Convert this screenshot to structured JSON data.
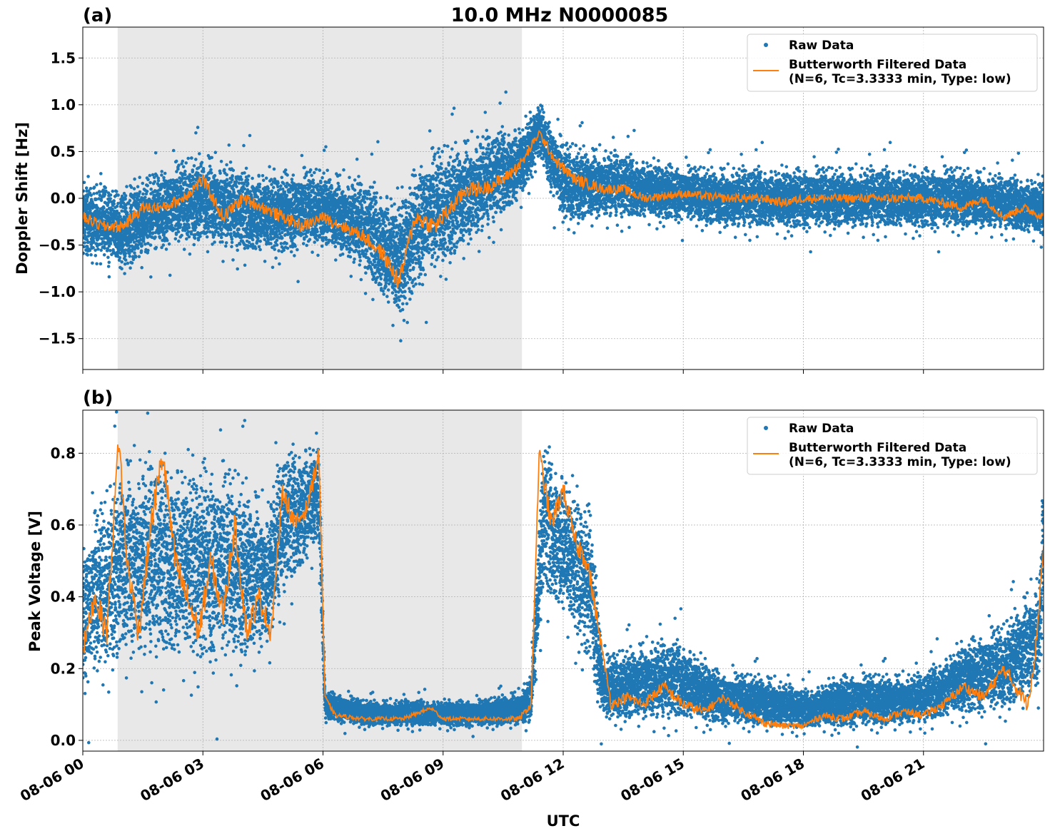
{
  "figure": {
    "title": "10.0 MHz N0000085",
    "xlabel": "UTC",
    "colors": {
      "raw": "#1f77b4",
      "filtered": "#ff7f0e",
      "shade": "#e8e8e8",
      "grid": "#b0b0b0"
    }
  },
  "chart_data": [
    {
      "type": "scatter",
      "panel_label": "(a)",
      "ylabel": "Doppler Shift [Hz]",
      "xlim": [
        0,
        24
      ],
      "ylim": [
        -1.83,
        1.83
      ],
      "x_ticks": [
        0,
        3,
        6,
        9,
        12,
        15,
        18,
        21
      ],
      "y_ticks": [
        -1.5,
        -1.0,
        -0.5,
        0.0,
        0.5,
        1.0,
        1.5
      ],
      "y_tick_labels": [
        "−1.5",
        "−1.0",
        "−0.5",
        "0.0",
        "0.5",
        "1.0",
        "1.5"
      ],
      "grid": true,
      "shaded_interval_hours": [
        0.87,
        10.97
      ],
      "legend": {
        "placement": "top-right",
        "entries": [
          "Raw Data",
          "Butterworth Filtered Data",
          "(N=6, Tc=3.3333 min, Type: low)"
        ]
      },
      "series": [
        {
          "name": "Raw Data",
          "kind": "scatter-band",
          "x_hours": [
            0,
            1,
            2,
            3,
            4,
            5,
            6,
            7,
            7.9,
            8.5,
            9,
            10,
            11,
            11.4,
            12,
            13,
            14,
            15,
            16,
            17,
            18,
            19,
            20,
            21,
            22,
            23,
            24
          ],
          "lower": [
            -0.7,
            -0.9,
            -0.6,
            -0.6,
            -0.7,
            -0.7,
            -0.6,
            -0.9,
            -1.5,
            -1.0,
            -0.9,
            -0.5,
            -0.1,
            0.4,
            -0.4,
            -0.3,
            -0.3,
            -0.3,
            -0.4,
            -0.4,
            -0.4,
            -0.4,
            -0.4,
            -0.4,
            -0.4,
            -0.4,
            -0.5
          ],
          "upper": [
            0.3,
            0.2,
            0.4,
            0.6,
            0.4,
            0.4,
            0.4,
            0.3,
            0.2,
            0.6,
            0.7,
            0.8,
            0.9,
            1.1,
            0.7,
            0.6,
            0.5,
            0.4,
            0.4,
            0.4,
            0.4,
            0.4,
            0.4,
            0.4,
            0.4,
            0.3,
            0.3
          ]
        },
        {
          "name": "Butterworth Filtered Data",
          "kind": "line",
          "x_hours": [
            0,
            0.5,
            1,
            1.5,
            2,
            2.5,
            3,
            3.5,
            4,
            4.5,
            5,
            5.5,
            6,
            6.5,
            7,
            7.5,
            7.9,
            8.3,
            8.8,
            9.2,
            9.6,
            10,
            10.5,
            11,
            11.4,
            11.8,
            12.3,
            13,
            13.5,
            14,
            15,
            16,
            17,
            17.5,
            18,
            19,
            20,
            21,
            22,
            22.5,
            23,
            23.5,
            24
          ],
          "values": [
            -0.2,
            -0.3,
            -0.3,
            -0.1,
            -0.1,
            0.0,
            0.2,
            -0.2,
            0.0,
            -0.1,
            -0.2,
            -0.3,
            -0.2,
            -0.3,
            -0.4,
            -0.6,
            -0.9,
            -0.2,
            -0.3,
            -0.1,
            0.1,
            0.1,
            0.2,
            0.4,
            0.7,
            0.4,
            0.2,
            0.1,
            0.1,
            0.0,
            0.05,
            0.0,
            0.0,
            -0.05,
            0.0,
            0.0,
            0.0,
            0.0,
            -0.1,
            0.0,
            -0.2,
            -0.1,
            -0.2
          ]
        }
      ]
    },
    {
      "type": "scatter",
      "panel_label": "(b)",
      "ylabel": "Peak Voltage [V]",
      "xlim": [
        0,
        24
      ],
      "ylim": [
        -0.03,
        0.92
      ],
      "x_ticks": [
        0,
        3,
        6,
        9,
        12,
        15,
        18,
        21
      ],
      "x_tick_labels": [
        "08-06 00",
        "08-06 03",
        "08-06 06",
        "08-06 09",
        "08-06 12",
        "08-06 15",
        "08-06 18",
        "08-06 21"
      ],
      "y_ticks": [
        0.0,
        0.2,
        0.4,
        0.6,
        0.8
      ],
      "y_tick_labels": [
        "0.0",
        "0.2",
        "0.4",
        "0.6",
        "0.8"
      ],
      "grid": true,
      "shaded_interval_hours": [
        0.87,
        10.97
      ],
      "legend": {
        "placement": "top-right",
        "entries": [
          "Raw Data",
          "Butterworth Filtered Data",
          "(N=6, Tc=3.3333 min, Type: low)"
        ]
      },
      "series": [
        {
          "name": "Raw Data",
          "kind": "scatter-band",
          "x_hours": [
            0,
            1,
            2,
            3,
            4,
            4.6,
            5,
            5.9,
            6.05,
            7,
            8,
            9,
            10,
            10.9,
            11.2,
            11.5,
            12,
            12.7,
            13,
            14,
            15,
            16,
            17,
            18,
            19,
            20,
            21,
            22,
            23,
            23.9,
            24
          ],
          "lower": [
            0.1,
            0.15,
            0.15,
            0.15,
            0.15,
            0.2,
            0.35,
            0.5,
            0.05,
            0.03,
            0.03,
            0.03,
            0.03,
            0.03,
            0.03,
            0.35,
            0.3,
            0.15,
            0.03,
            0.03,
            0.03,
            0.03,
            0.02,
            0.02,
            0.02,
            0.02,
            0.03,
            0.05,
            0.05,
            0.1,
            0.3
          ],
          "upper": [
            0.6,
            0.85,
            0.85,
            0.85,
            0.8,
            0.7,
            0.85,
            0.88,
            0.15,
            0.12,
            0.12,
            0.12,
            0.12,
            0.15,
            0.2,
            0.88,
            0.8,
            0.7,
            0.25,
            0.3,
            0.3,
            0.2,
            0.2,
            0.15,
            0.2,
            0.2,
            0.2,
            0.3,
            0.35,
            0.5,
            0.85
          ]
        },
        {
          "name": "Butterworth Filtered Data",
          "kind": "line",
          "x_hours": [
            0,
            0.3,
            0.6,
            0.9,
            1.1,
            1.4,
            1.7,
            2.0,
            2.3,
            2.6,
            2.9,
            3.2,
            3.5,
            3.8,
            4.1,
            4.4,
            4.7,
            5.0,
            5.3,
            5.6,
            5.9,
            6.05,
            6.3,
            7,
            8,
            8.7,
            9,
            10,
            10.9,
            11.2,
            11.4,
            11.7,
            12.0,
            12.3,
            12.6,
            12.9,
            13.2,
            13.6,
            14,
            14.5,
            15,
            15.5,
            16,
            16.5,
            17,
            17.5,
            18,
            18.5,
            19,
            19.5,
            20,
            20.5,
            21,
            21.5,
            22,
            22.5,
            23,
            23.3,
            23.6,
            23.8,
            24
          ],
          "values": [
            0.25,
            0.4,
            0.3,
            0.85,
            0.5,
            0.3,
            0.6,
            0.8,
            0.5,
            0.4,
            0.3,
            0.5,
            0.35,
            0.6,
            0.3,
            0.4,
            0.3,
            0.7,
            0.6,
            0.65,
            0.8,
            0.12,
            0.07,
            0.06,
            0.06,
            0.09,
            0.06,
            0.06,
            0.06,
            0.1,
            0.8,
            0.6,
            0.7,
            0.55,
            0.5,
            0.3,
            0.1,
            0.12,
            0.1,
            0.15,
            0.1,
            0.08,
            0.12,
            0.08,
            0.05,
            0.04,
            0.04,
            0.07,
            0.06,
            0.08,
            0.06,
            0.08,
            0.07,
            0.1,
            0.15,
            0.12,
            0.2,
            0.15,
            0.1,
            0.25,
            0.55
          ]
        }
      ]
    }
  ]
}
